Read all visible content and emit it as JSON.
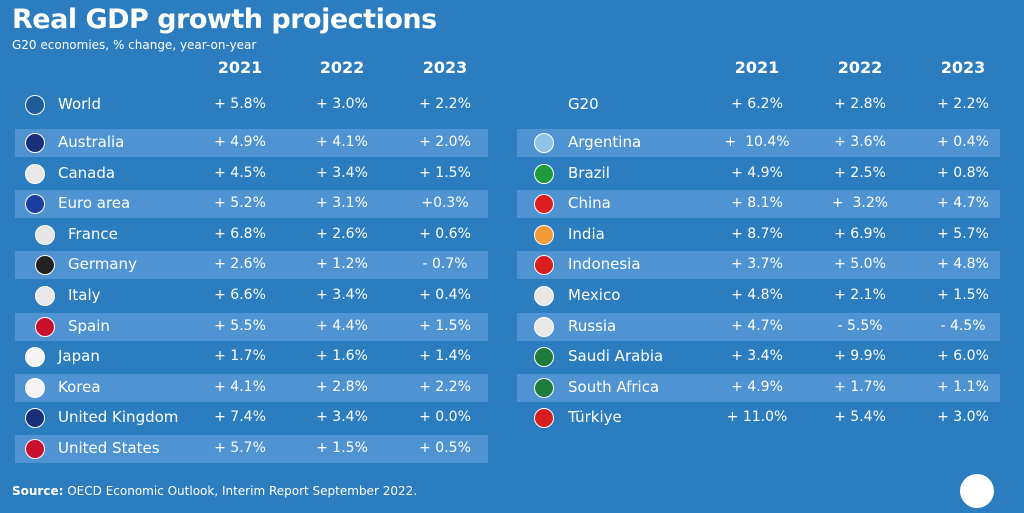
{
  "title": "Real GDP growth projections",
  "subtitle": "G20 economies, % change, year-on-year",
  "left": {
    "years": [
      "2021",
      "2022",
      "2023"
    ],
    "rows": [
      {
        "name": "World",
        "values": [
          "+ 5.8%",
          "+ 3.0%",
          "+ 2.2%"
        ]
      },
      {
        "name": "Australia",
        "values": [
          "+ 4.9%",
          "+ 4.1%",
          "+ 2.0%"
        ]
      },
      {
        "name": "Canada",
        "values": [
          "+ 4.5%",
          "+ 3.4%",
          "+ 1.5%"
        ]
      },
      {
        "name": "Euro area",
        "values": [
          "+ 5.2%",
          "+ 3.1%",
          "+0.3%"
        ]
      },
      {
        "name": "France",
        "values": [
          "+ 6.8%",
          "+ 2.6%",
          "+ 0.6%"
        ]
      },
      {
        "name": "Germany",
        "values": [
          "+ 2.6%",
          "+ 1.2%",
          "- 0.7%"
        ]
      },
      {
        "name": "Italy",
        "values": [
          "+ 6.6%",
          "+ 3.4%",
          "+ 0.4%"
        ]
      },
      {
        "name": "Spain",
        "values": [
          "+ 5.5%",
          "+ 4.4%",
          "+ 1.5%"
        ]
      },
      {
        "name": "Japan",
        "values": [
          "+ 1.7%",
          "+ 1.6%",
          "+ 1.4%"
        ]
      },
      {
        "name": "Korea",
        "values": [
          "+ 4.1%",
          "+ 2.8%",
          "+ 2.2%"
        ]
      },
      {
        "name": "United Kingdom",
        "values": [
          "+ 7.4%",
          "+ 3.4%",
          "+ 0.0%"
        ]
      },
      {
        "name": "United States",
        "values": [
          "+ 5.7%",
          "+ 1.5%",
          "+ 0.5%"
        ]
      }
    ]
  },
  "right": {
    "years": [
      "2021",
      "2022",
      "2023"
    ],
    "rows": [
      {
        "name": "G20",
        "values": [
          "+ 6.2%",
          "+ 2.8%",
          "+ 2.2%"
        ]
      },
      {
        "name": "Argentina",
        "values": [
          "+  10.4%",
          "+ 3.6%",
          "+ 0.4%"
        ]
      },
      {
        "name": "Brazil",
        "values": [
          "+ 4.9%",
          "+ 2.5%",
          "+ 0.8%"
        ]
      },
      {
        "name": "China",
        "values": [
          "+ 8.1%",
          "+  3.2%",
          "+ 4.7%"
        ]
      },
      {
        "name": "India",
        "values": [
          "+ 8.7%",
          "+ 6.9%",
          "+ 5.7%"
        ]
      },
      {
        "name": "Indonesia",
        "values": [
          "+ 3.7%",
          "+ 5.0%",
          "+ 4.8%"
        ]
      },
      {
        "name": "Mexico",
        "values": [
          "+ 4.8%",
          "+ 2.1%",
          "+ 1.5%"
        ]
      },
      {
        "name": "Russia",
        "values": [
          "+ 4.7%",
          "- 5.5%",
          "- 4.5%"
        ]
      },
      {
        "name": "Saudi Arabia",
        "values": [
          "+ 3.4%",
          "+ 9.9%",
          "+ 6.0%"
        ]
      },
      {
        "name": "South Africa",
        "values": [
          "+ 4.9%",
          "+ 1.7%",
          "+ 1.1%"
        ]
      },
      {
        "name": "Türkiye",
        "values": [
          "+ 11.0%",
          "+ 5.4%",
          "+ 3.0%"
        ]
      }
    ]
  },
  "source": {
    "label": "Source:",
    "text": "OECD Economic Outlook, Interim Report September 2022."
  }
}
